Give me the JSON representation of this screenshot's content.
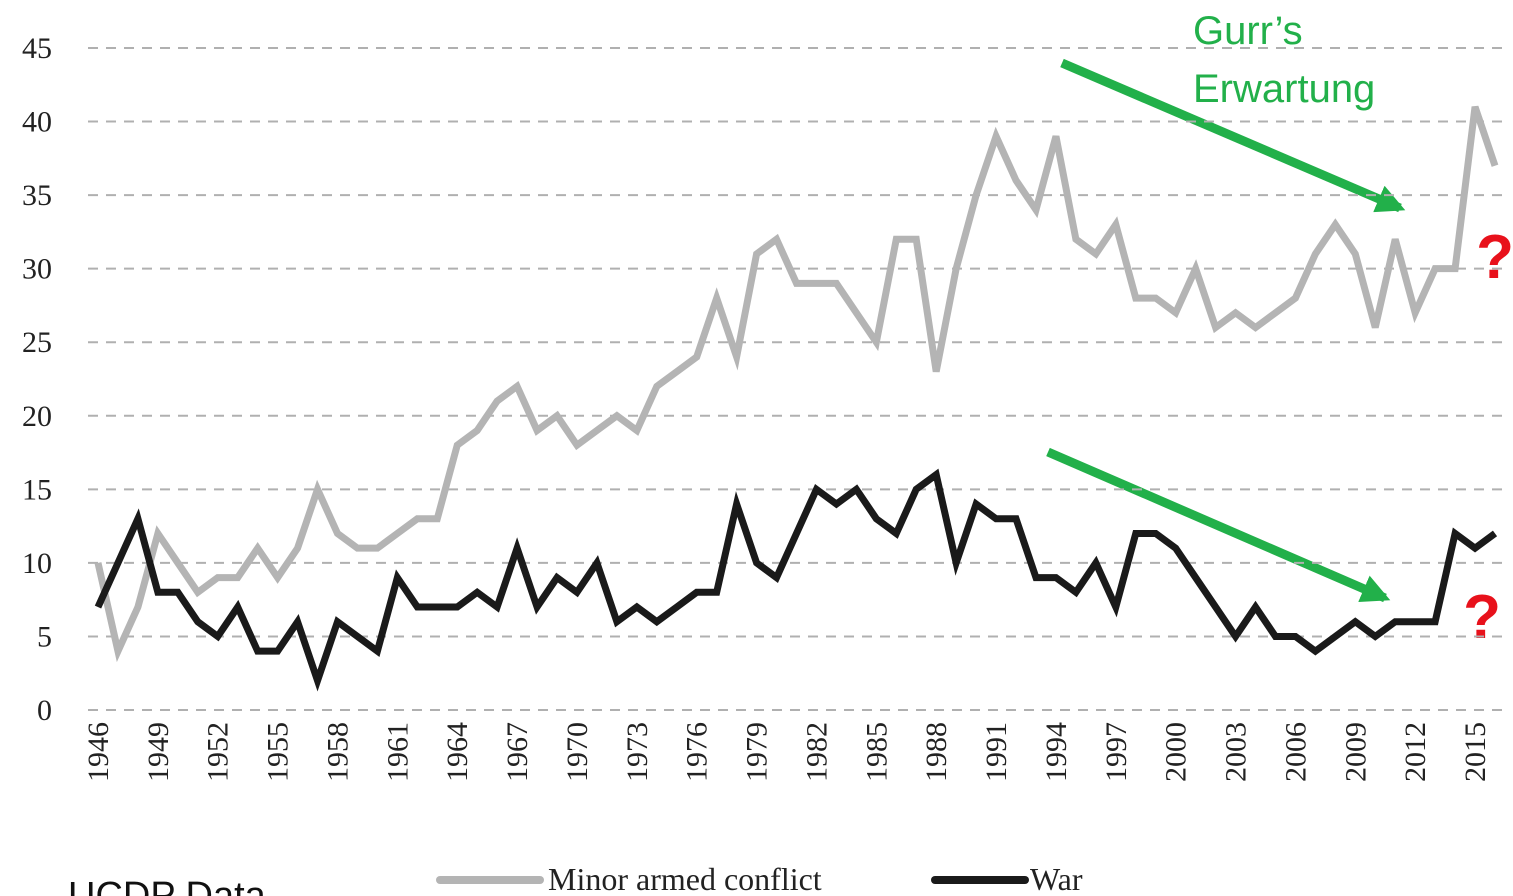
{
  "chart_data": {
    "type": "line",
    "x": [
      1946,
      1947,
      1948,
      1949,
      1950,
      1951,
      1952,
      1953,
      1954,
      1955,
      1956,
      1957,
      1958,
      1959,
      1960,
      1961,
      1962,
      1963,
      1964,
      1965,
      1966,
      1967,
      1968,
      1969,
      1970,
      1971,
      1972,
      1973,
      1974,
      1975,
      1976,
      1977,
      1978,
      1979,
      1980,
      1981,
      1982,
      1983,
      1984,
      1985,
      1986,
      1987,
      1988,
      1989,
      1990,
      1991,
      1992,
      1993,
      1994,
      1995,
      1996,
      1997,
      1998,
      1999,
      2000,
      2001,
      2002,
      2003,
      2004,
      2005,
      2006,
      2007,
      2008,
      2009,
      2010,
      2011,
      2012,
      2013,
      2014,
      2015,
      2016
    ],
    "xticks": [
      1946,
      1949,
      1952,
      1955,
      1958,
      1961,
      1964,
      1967,
      1970,
      1973,
      1976,
      1979,
      1982,
      1985,
      1988,
      1991,
      1994,
      1997,
      2000,
      2003,
      2006,
      2009,
      2012,
      2015
    ],
    "xlim": [
      1946,
      2016
    ],
    "series": [
      {
        "name": "Minor armed conflict",
        "color": "#b4b4b4",
        "values": [
          10,
          4,
          7,
          12,
          10,
          8,
          9,
          9,
          11,
          9,
          11,
          15,
          12,
          11,
          11,
          12,
          13,
          13,
          18,
          19,
          21,
          22,
          19,
          20,
          18,
          19,
          20,
          19,
          22,
          23,
          24,
          28,
          24,
          31,
          32,
          29,
          29,
          29,
          27,
          25,
          32,
          32,
          23,
          30,
          35,
          39,
          36,
          34,
          39,
          32,
          31,
          33,
          28,
          28,
          27,
          30,
          26,
          27,
          26,
          27,
          28,
          31,
          33,
          31,
          26,
          32,
          27,
          30,
          30,
          41,
          37
        ]
      },
      {
        "name": "War",
        "color": "#1a1a1a",
        "values": [
          7,
          10,
          13,
          8,
          8,
          6,
          5,
          7,
          4,
          4,
          6,
          2,
          6,
          5,
          4,
          9,
          7,
          7,
          7,
          8,
          7,
          11,
          7,
          9,
          8,
          10,
          6,
          7,
          6,
          7,
          8,
          8,
          14,
          10,
          9,
          12,
          15,
          14,
          15,
          13,
          12,
          15,
          16,
          10,
          14,
          13,
          13,
          9,
          9,
          8,
          10,
          7,
          12,
          12,
          11,
          9,
          7,
          5,
          7,
          5,
          5,
          4,
          5,
          6,
          5,
          6,
          6,
          6,
          12,
          11,
          12
        ]
      }
    ],
    "ylim": [
      0,
      45
    ],
    "yticks": [
      0,
      5,
      10,
      15,
      20,
      25,
      30,
      35,
      40,
      45
    ],
    "grid": true,
    "annotations": [
      "Gurr’s",
      "Erwartung",
      "?",
      "?",
      "UCDP Data"
    ]
  }
}
